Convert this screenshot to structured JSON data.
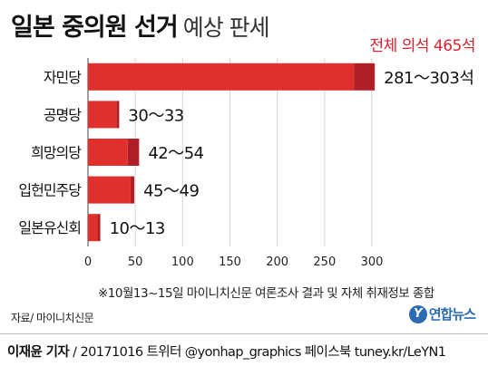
{
  "title": {
    "bold": "일본 중의원 선거",
    "light": "예상 판세"
  },
  "total_label": "전체 의석 465석",
  "note": "※10월13~15일 마이니치신문 여론조사 결과 및 자체 취재정보 종합",
  "source": "자료/ 마이니치신문",
  "logo_text": "연합뉴스",
  "credit": {
    "name": "이재윤 기자",
    "rest": " / 20171016  트위터 @yonhap_graphics  페이스북 tuney.kr/LeYN1"
  },
  "colors": {
    "bar": "#e0302e",
    "bar_dark": "#b11f26",
    "accent_text": "#d8232f",
    "grid": "#d6d6d6"
  },
  "chart_data": {
    "type": "bar",
    "orientation": "horizontal",
    "categories": [
      "자민당",
      "공명당",
      "희망의당",
      "입헌민주당",
      "일본유신회"
    ],
    "ranges": [
      [
        281,
        303
      ],
      [
        30,
        33
      ],
      [
        42,
        54
      ],
      [
        45,
        49
      ],
      [
        10,
        13
      ]
    ],
    "value_labels": [
      "281～303석",
      "30～33",
      "42～54",
      "45～49",
      "10～13"
    ],
    "xlim": [
      0,
      300
    ],
    "xticks": [
      0,
      50,
      100,
      150,
      200,
      250,
      300
    ],
    "grid": true
  }
}
